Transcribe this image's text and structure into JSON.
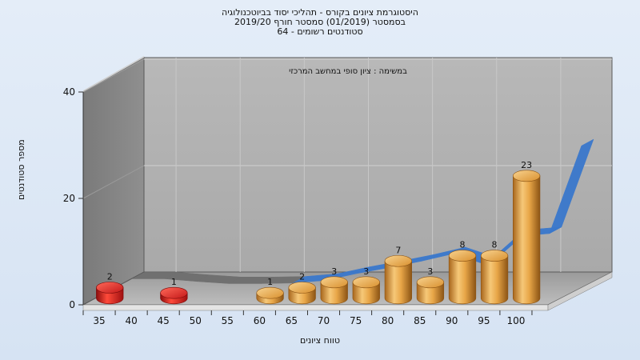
{
  "chart_data": {
    "type": "bar",
    "title_lines": [
      "היסטוגרמת ציונים בקורס - תהליכי יסוד בביוטכנולוגיה",
      "בסמסטר  (01/2019)  סמסטר חורף 2019/20",
      "סטודנטים רשומים - 64"
    ],
    "annotation": "במשימה : ציון סופי במחשב המרכזי",
    "xlabel": "טווח ציונים",
    "ylabel": "מספר סטודנטים",
    "ylim": [
      0,
      40
    ],
    "yticks": [
      0,
      20,
      40
    ],
    "xticks": [
      "35",
      "40",
      "45",
      "50",
      "55",
      "60",
      "65",
      "70",
      "75",
      "80",
      "85",
      "90",
      "95",
      "100"
    ],
    "grid": true,
    "series": [
      {
        "type": "bar",
        "categories": [
          "35",
          "45",
          "60",
          "65",
          "70",
          "75",
          "80",
          "85",
          "90",
          "95",
          "100"
        ],
        "values": [
          2,
          1,
          1,
          2,
          3,
          3,
          7,
          3,
          8,
          8,
          23
        ],
        "colors": [
          "#d8201e",
          "#d8201e",
          "#e8a648",
          "#e8a648",
          "#e8a648",
          "#e8a648",
          "#e8a648",
          "#e8a648",
          "#e8a648",
          "#e8a648",
          "#e8a648"
        ]
      },
      {
        "type": "area-ribbon",
        "x": [
          "35",
          "40",
          "45",
          "50",
          "55",
          "60",
          "65",
          "70",
          "75",
          "80",
          "85",
          "90",
          "95",
          "100",
          "105"
        ],
        "values": [
          1.5,
          1.5,
          1.0,
          0.6,
          0.6,
          0.7,
          1.2,
          2.5,
          3.6,
          4.8,
          6.2,
          4.2,
          9.5,
          10.0,
          26.5
        ],
        "colors": {
          "low": "#6e6e6e",
          "high": "#3a78cc"
        }
      }
    ]
  }
}
